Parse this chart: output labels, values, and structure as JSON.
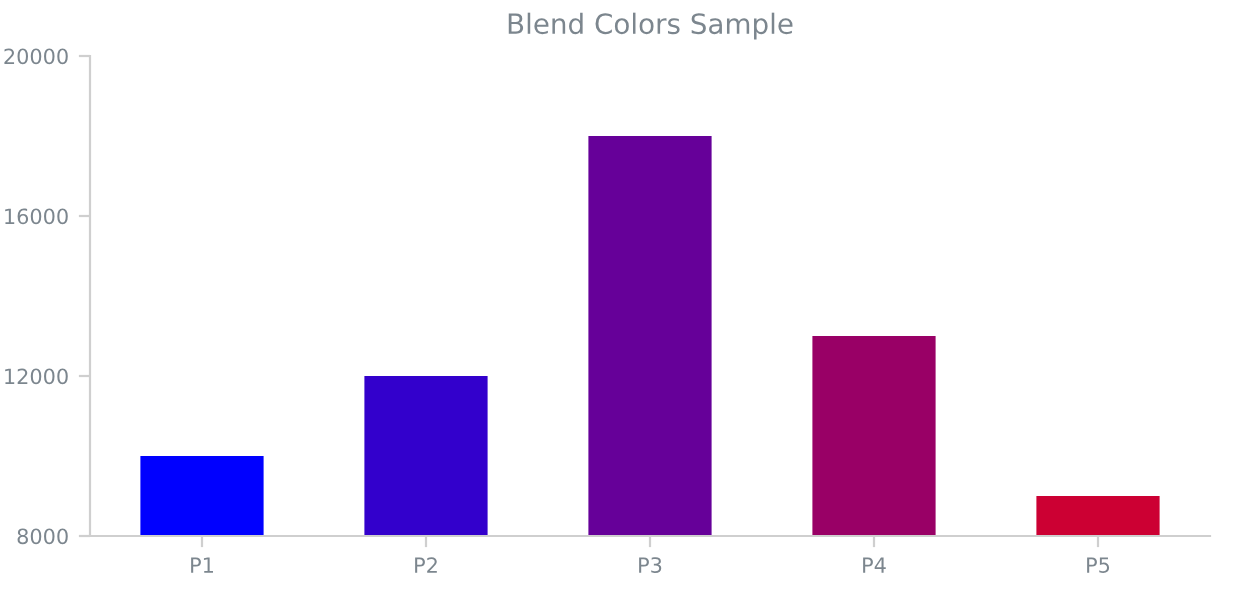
{
  "chart_data": {
    "type": "bar",
    "title": "Blend Colors Sample",
    "categories": [
      "P1",
      "P2",
      "P3",
      "P4",
      "P5"
    ],
    "values": [
      10000,
      12000,
      18000,
      13000,
      9000
    ],
    "colors": [
      "#0000ff",
      "#3300cc",
      "#660099",
      "#990066",
      "#cc0033"
    ],
    "ylim": [
      8000,
      20000
    ],
    "yticks": [
      8000,
      12000,
      16000,
      20000
    ],
    "grid": false
  }
}
